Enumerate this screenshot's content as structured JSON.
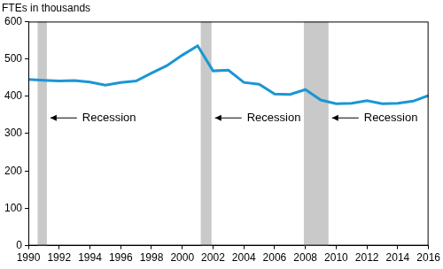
{
  "chart_data": {
    "type": "line",
    "ylabel": "FTEs in thousands",
    "x": [
      1990,
      1991,
      1992,
      1993,
      1994,
      1995,
      1996,
      1997,
      1998,
      1999,
      2000,
      2001,
      2002,
      2003,
      2004,
      2005,
      2006,
      2007,
      2008,
      2009,
      2010,
      2011,
      2012,
      2013,
      2014,
      2015,
      2016
    ],
    "values": [
      445,
      443,
      441,
      442,
      438,
      430,
      437,
      441,
      462,
      482,
      510,
      535,
      468,
      470,
      437,
      432,
      406,
      405,
      418,
      390,
      380,
      381,
      388,
      380,
      381,
      387,
      402
    ],
    "color": "#1b96d3",
    "recessions": [
      {
        "start": 1990.6,
        "end": 1991.2,
        "label": "Recession"
      },
      {
        "start": 2001.2,
        "end": 2001.9,
        "label": "Recession"
      },
      {
        "start": 2007.9,
        "end": 2009.5,
        "label": "Recession"
      }
    ],
    "xlim": [
      1990,
      2016
    ],
    "xticks": [
      1990,
      1992,
      1994,
      1996,
      1998,
      2000,
      2002,
      2004,
      2006,
      2008,
      2010,
      2012,
      2014,
      2016
    ],
    "ylim": [
      0,
      600
    ],
    "yticks": [
      0,
      100,
      200,
      300,
      400,
      500,
      600
    ],
    "grid": false
  }
}
